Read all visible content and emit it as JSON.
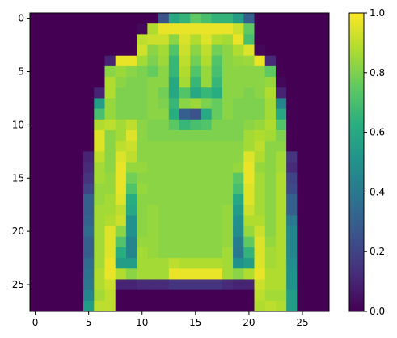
{
  "chart_data": {
    "type": "heatmap",
    "title": "",
    "xlabel": "",
    "ylabel": "",
    "xlim": [
      -0.5,
      27.5
    ],
    "ylim": [
      27.5,
      -0.5
    ],
    "x_ticks": [
      0,
      5,
      10,
      15,
      20,
      25
    ],
    "x_tick_labels": [
      "0",
      "5",
      "10",
      "15",
      "20",
      "25"
    ],
    "y_ticks": [
      0,
      5,
      10,
      15,
      20,
      25
    ],
    "y_tick_labels": [
      "0",
      "5",
      "10",
      "15",
      "20",
      "25"
    ],
    "colormap": "viridis",
    "vmin": 0.0,
    "vmax": 1.0,
    "colorbar": {
      "ticks": [
        0.0,
        0.2,
        0.4,
        0.6,
        0.8,
        1.0
      ],
      "tick_labels": [
        "0.0",
        "0.2",
        "0.4",
        "0.6",
        "0.8",
        "1.0"
      ]
    },
    "grid": false,
    "note_values": "pixel intensities estimated from colors; 28x28 grid, rows top to bottom",
    "z": [
      [
        0,
        0,
        0,
        0,
        0,
        0,
        0,
        0,
        0,
        0,
        0,
        0,
        0.25,
        0.6,
        0.65,
        0.75,
        0.7,
        0.65,
        0.65,
        0.55,
        0.3,
        0,
        0,
        0,
        0,
        0,
        0,
        0
      ],
      [
        0,
        0,
        0,
        0,
        0,
        0,
        0,
        0,
        0,
        0,
        0.02,
        0.88,
        0.97,
        0.97,
        0.97,
        0.97,
        0.97,
        0.97,
        0.97,
        0.92,
        0.75,
        0,
        0,
        0,
        0,
        0,
        0,
        0
      ],
      [
        0,
        0,
        0,
        0,
        0,
        0,
        0,
        0,
        0,
        0,
        0.9,
        0.92,
        0.92,
        0.82,
        0.94,
        0.88,
        0.95,
        0.88,
        0.86,
        0.97,
        0.7,
        0,
        0,
        0,
        0,
        0,
        0,
        0
      ],
      [
        0,
        0,
        0,
        0,
        0,
        0,
        0,
        0,
        0,
        0,
        0.93,
        0.82,
        0.86,
        0.72,
        0.92,
        0.82,
        0.9,
        0.78,
        0.82,
        0.88,
        0.95,
        0.02,
        0,
        0,
        0,
        0,
        0,
        0
      ],
      [
        0,
        0,
        0,
        0,
        0,
        0,
        0,
        0.1,
        0.97,
        0.97,
        0.86,
        0.8,
        0.85,
        0.66,
        0.9,
        0.78,
        0.88,
        0.72,
        0.82,
        0.84,
        0.85,
        0.97,
        0.12,
        0,
        0,
        0,
        0,
        0
      ],
      [
        0,
        0,
        0,
        0,
        0,
        0,
        0,
        0.82,
        0.85,
        0.82,
        0.8,
        0.76,
        0.82,
        0.66,
        0.88,
        0.72,
        0.84,
        0.7,
        0.82,
        0.82,
        0.82,
        0.82,
        0.75,
        0,
        0,
        0,
        0,
        0
      ],
      [
        0,
        0,
        0,
        0,
        0,
        0,
        0,
        0.88,
        0.82,
        0.8,
        0.8,
        0.82,
        0.82,
        0.6,
        0.86,
        0.66,
        0.84,
        0.66,
        0.82,
        0.82,
        0.82,
        0.82,
        0.84,
        0.02,
        0,
        0,
        0,
        0
      ],
      [
        0,
        0,
        0,
        0,
        0,
        0,
        0.1,
        0.88,
        0.8,
        0.8,
        0.8,
        0.82,
        0.78,
        0.6,
        0.72,
        0.6,
        0.66,
        0.62,
        0.82,
        0.82,
        0.8,
        0.82,
        0.88,
        0.1,
        0,
        0,
        0,
        0
      ],
      [
        0,
        0,
        0,
        0,
        0,
        0,
        0.55,
        0.84,
        0.8,
        0.8,
        0.8,
        0.82,
        0.8,
        0.66,
        0.82,
        0.85,
        0.8,
        0.76,
        0.82,
        0.8,
        0.8,
        0.8,
        0.86,
        0.45,
        0,
        0,
        0,
        0
      ],
      [
        0,
        0,
        0,
        0,
        0,
        0,
        0.7,
        0.84,
        0.8,
        0.8,
        0.8,
        0.82,
        0.82,
        0.62,
        0.3,
        0.25,
        0.6,
        0.76,
        0.82,
        0.8,
        0.8,
        0.8,
        0.86,
        0.6,
        0,
        0,
        0,
        0
      ],
      [
        0,
        0,
        0,
        0,
        0,
        0,
        0.88,
        0.9,
        0.86,
        0.9,
        0.82,
        0.8,
        0.8,
        0.74,
        0.66,
        0.7,
        0.72,
        0.8,
        0.8,
        0.8,
        0.82,
        0.84,
        0.88,
        0.72,
        0,
        0,
        0,
        0
      ],
      [
        0,
        0,
        0,
        0,
        0,
        0,
        0.95,
        0.82,
        0.86,
        0.95,
        0.82,
        0.8,
        0.8,
        0.8,
        0.8,
        0.8,
        0.8,
        0.8,
        0.8,
        0.8,
        0.86,
        0.88,
        0.86,
        0.8,
        0,
        0,
        0,
        0
      ],
      [
        0,
        0,
        0,
        0,
        0,
        0,
        0.95,
        0.82,
        0.9,
        0.92,
        0.82,
        0.82,
        0.82,
        0.82,
        0.82,
        0.82,
        0.82,
        0.82,
        0.82,
        0.82,
        0.86,
        0.9,
        0.82,
        0.82,
        0,
        0,
        0,
        0
      ],
      [
        0,
        0,
        0,
        0,
        0,
        0.1,
        0.9,
        0.82,
        0.95,
        0.9,
        0.82,
        0.82,
        0.82,
        0.82,
        0.82,
        0.82,
        0.82,
        0.82,
        0.82,
        0.82,
        0.95,
        0.88,
        0.82,
        0.86,
        0.15,
        0,
        0,
        0
      ],
      [
        0,
        0,
        0,
        0,
        0,
        0.12,
        0.86,
        0.82,
        0.97,
        0.84,
        0.84,
        0.82,
        0.82,
        0.82,
        0.82,
        0.82,
        0.82,
        0.82,
        0.82,
        0.84,
        0.97,
        0.84,
        0.82,
        0.86,
        0.12,
        0,
        0,
        0
      ],
      [
        0,
        0,
        0,
        0,
        0,
        0.15,
        0.86,
        0.84,
        0.97,
        0.78,
        0.82,
        0.82,
        0.82,
        0.82,
        0.82,
        0.82,
        0.82,
        0.82,
        0.82,
        0.74,
        0.97,
        0.86,
        0.82,
        0.88,
        0.2,
        0,
        0,
        0
      ],
      [
        0,
        0,
        0,
        0,
        0,
        0.2,
        0.84,
        0.84,
        0.97,
        0.72,
        0.84,
        0.82,
        0.82,
        0.82,
        0.82,
        0.82,
        0.82,
        0.82,
        0.82,
        0.7,
        0.95,
        0.86,
        0.82,
        0.88,
        0.22,
        0,
        0,
        0
      ],
      [
        0,
        0,
        0,
        0,
        0,
        0.3,
        0.84,
        0.86,
        0.95,
        0.62,
        0.82,
        0.82,
        0.82,
        0.82,
        0.82,
        0.82,
        0.82,
        0.82,
        0.82,
        0.6,
        0.95,
        0.86,
        0.82,
        0.88,
        0.3,
        0,
        0,
        0
      ],
      [
        0,
        0,
        0,
        0,
        0,
        0.3,
        0.86,
        0.86,
        0.9,
        0.6,
        0.82,
        0.84,
        0.82,
        0.82,
        0.82,
        0.82,
        0.82,
        0.82,
        0.84,
        0.55,
        0.92,
        0.86,
        0.82,
        0.88,
        0.3,
        0,
        0,
        0
      ],
      [
        0,
        0,
        0,
        0,
        0,
        0.32,
        0.86,
        0.88,
        0.92,
        0.5,
        0.82,
        0.84,
        0.82,
        0.82,
        0.82,
        0.82,
        0.82,
        0.82,
        0.84,
        0.5,
        0.88,
        0.88,
        0.82,
        0.88,
        0.4,
        0,
        0,
        0
      ],
      [
        0,
        0,
        0,
        0,
        0,
        0.35,
        0.86,
        0.95,
        0.82,
        0.5,
        0.82,
        0.84,
        0.82,
        0.82,
        0.82,
        0.82,
        0.82,
        0.82,
        0.84,
        0.48,
        0.84,
        0.92,
        0.82,
        0.88,
        0.45,
        0,
        0,
        0
      ],
      [
        0,
        0,
        0,
        0,
        0,
        0.3,
        0.86,
        0.95,
        0.72,
        0.45,
        0.84,
        0.84,
        0.82,
        0.82,
        0.82,
        0.82,
        0.82,
        0.82,
        0.84,
        0.42,
        0.75,
        0.95,
        0.84,
        0.88,
        0.45,
        0,
        0,
        0
      ],
      [
        0,
        0,
        0,
        0,
        0,
        0.3,
        0.86,
        0.95,
        0.62,
        0.45,
        0.86,
        0.84,
        0.82,
        0.82,
        0.82,
        0.82,
        0.82,
        0.82,
        0.86,
        0.4,
        0.65,
        0.95,
        0.86,
        0.88,
        0.45,
        0,
        0,
        0
      ],
      [
        0,
        0,
        0,
        0,
        0,
        0.35,
        0.86,
        0.97,
        0.55,
        0.55,
        0.86,
        0.86,
        0.86,
        0.9,
        0.88,
        0.88,
        0.88,
        0.88,
        0.86,
        0.5,
        0.55,
        0.95,
        0.86,
        0.88,
        0.48,
        0,
        0,
        0
      ],
      [
        0,
        0,
        0,
        0,
        0,
        0.38,
        0.88,
        0.97,
        0.88,
        0.82,
        0.86,
        0.86,
        0.86,
        0.97,
        0.97,
        0.97,
        0.97,
        0.97,
        0.86,
        0.82,
        0.88,
        0.97,
        0.88,
        0.88,
        0.5,
        0,
        0,
        0
      ],
      [
        0,
        0,
        0,
        0,
        0,
        0.4,
        0.88,
        0.92,
        0.1,
        0.1,
        0.12,
        0.12,
        0.12,
        0.15,
        0.15,
        0.15,
        0.15,
        0.15,
        0.12,
        0.1,
        0.1,
        0.92,
        0.88,
        0.88,
        0.5,
        0,
        0,
        0
      ],
      [
        0,
        0,
        0,
        0,
        0,
        0.45,
        0.86,
        0.9,
        0,
        0,
        0,
        0,
        0,
        0,
        0,
        0,
        0,
        0,
        0,
        0,
        0,
        0.9,
        0.86,
        0.86,
        0.55,
        0,
        0,
        0
      ],
      [
        0,
        0,
        0,
        0,
        0,
        0.55,
        0.9,
        0.9,
        0,
        0,
        0,
        0,
        0,
        0,
        0,
        0,
        0,
        0,
        0,
        0,
        0,
        0.88,
        0.9,
        0.88,
        0.55,
        0,
        0,
        0
      ]
    ]
  }
}
